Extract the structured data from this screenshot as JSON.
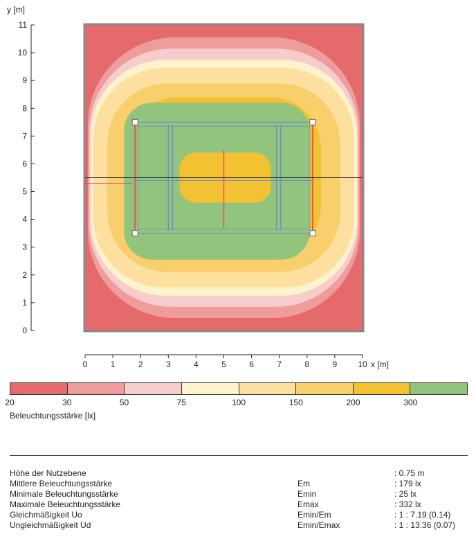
{
  "chart_data": {
    "type": "heatmap",
    "title": "",
    "xlabel": "x [m]",
    "ylabel": "y [m]",
    "xlim": [
      0,
      10
    ],
    "ylim": [
      0,
      11
    ],
    "x_ticks": [
      0,
      1,
      2,
      3,
      4,
      5,
      6,
      7,
      8,
      9,
      10
    ],
    "y_ticks": [
      0,
      1,
      2,
      3,
      4,
      5,
      6,
      7,
      8,
      9,
      10,
      11
    ],
    "contour_levels_lx": [
      20,
      30,
      50,
      75,
      100,
      150,
      200,
      300
    ],
    "level_colors": [
      "#e46a6c",
      "#ef9c9c",
      "#f6cccc",
      "#fff2cc",
      "#fde0a0",
      "#f8cf6a",
      "#f2c232",
      "#93c47d"
    ],
    "levels_from_edge": [
      {
        "x": [
          0,
          10
        ],
        "y": [
          0,
          11
        ],
        "color": "#e46a6c"
      },
      {
        "x": [
          0.1,
          9.9
        ],
        "y": [
          0.45,
          10.55
        ],
        "color": "#ef9c9c"
      },
      {
        "x": [
          0.15,
          9.85
        ],
        "y": [
          0.85,
          10.15
        ],
        "color": "#f6cccc"
      },
      {
        "x": [
          0.2,
          9.8
        ],
        "y": [
          1.25,
          9.75
        ],
        "color": "#fff2cc"
      },
      {
        "x": [
          0.3,
          9.7
        ],
        "y": [
          1.55,
          9.45
        ],
        "color": "#fde0a0"
      },
      {
        "x": [
          0.8,
          9.2
        ],
        "y": [
          2.1,
          8.9
        ],
        "color": "#f8cf6a"
      },
      {
        "x": [
          1.5,
          8.5
        ],
        "y": [
          2.65,
          8.4
        ],
        "color": "#f2c232"
      },
      {
        "x": [
          1.4,
          8.1
        ],
        "y": [
          2.55,
          8.2
        ],
        "color": "#93c47d"
      }
    ],
    "legend_title": "Beleuchtungsstärke [lx]",
    "legend_placement": "bottom"
  },
  "summary": [
    {
      "label": "Höhe der Nutzebene",
      "symbol": "",
      "value": ": 0.75 m"
    },
    {
      "label": "Mittlere Beleuchtungsstärke",
      "symbol": "Em",
      "value": ": 179 lx"
    },
    {
      "label": "Minimale Beleuchtungsstärke",
      "symbol": "Emin",
      "value": ": 25 lx"
    },
    {
      "label": "Maximale Beleuchtungsstärke",
      "symbol": "Emax",
      "value": ": 332 lx"
    },
    {
      "label": "Gleichmäßigkeit Uo",
      "symbol": "Emin/Em",
      "value": ": 1 : 7.19 (0.14)"
    },
    {
      "label": "Ungleichmäßigkeit Ud",
      "symbol": "Emin/Emax",
      "value": ": 1 : 13.36 (0.07)"
    }
  ]
}
